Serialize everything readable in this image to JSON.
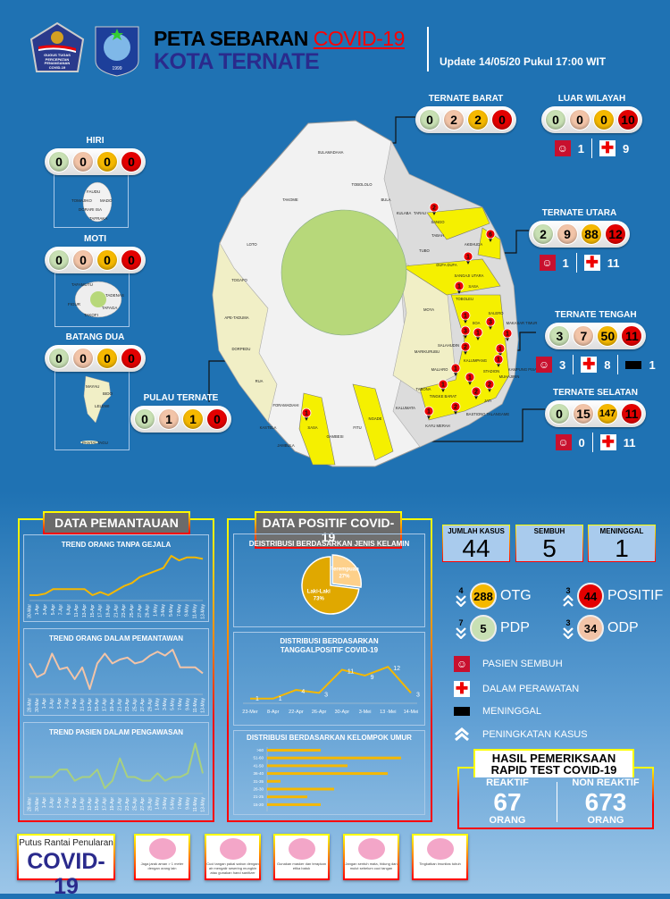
{
  "header": {
    "title_a": "PETA SEBARAN",
    "title_b": "COVID-19",
    "subtitle": "KOTA TERNATE",
    "update": "Update 14/05/20 Pukul 17:00 WIT",
    "logo1_text": "GUGUS TUGAS PERCEPATAN PENANGANAN COVID-19",
    "logo2_text": "1999"
  },
  "colors": {
    "otg": "#f5b800",
    "odp": "#f2c4a8",
    "pdp": "#c8e0b4",
    "positif": "#e30000",
    "background": "#1f72b3"
  },
  "regions": [
    {
      "name": "TERNATE BARAT",
      "values": [
        "0",
        "2",
        "2",
        "0"
      ]
    },
    {
      "name": "LUAR WILAYAH",
      "values": [
        "0",
        "0",
        "0",
        "10"
      ],
      "sembuh": "1",
      "dirawat": "9"
    },
    {
      "name": "TERNATE UTARA",
      "values": [
        "2",
        "9",
        "88",
        "12"
      ],
      "sembuh": "1",
      "dirawat": "11"
    },
    {
      "name": "TERNATE TENGAH",
      "values": [
        "3",
        "7",
        "50",
        "11"
      ],
      "sembuh": "3",
      "dirawat": "8",
      "meninggal": "1"
    },
    {
      "name": "TERNATE SELATAN",
      "values": [
        "0",
        "15",
        "147",
        "11"
      ],
      "sembuh": "0",
      "dirawat": "11"
    },
    {
      "name": "HIRI",
      "values": [
        "0",
        "0",
        "0",
        "0"
      ]
    },
    {
      "name": "MOTI",
      "values": [
        "0",
        "0",
        "0",
        "0"
      ]
    },
    {
      "name": "BATANG DUA",
      "values": [
        "0",
        "0",
        "0",
        "0"
      ]
    },
    {
      "name": "PULAU TERNATE",
      "values": [
        "0",
        "1",
        "1",
        "0"
      ]
    }
  ],
  "map": {
    "villages": [
      "SULAMADAHA",
      "TOBOLOLO",
      "TAKOME",
      "BULA",
      "KULABA",
      "TARAU",
      "SANGO",
      "TABAH",
      "AKEHUDA",
      "TUBO",
      "DUFA DUFA",
      "SANGAJI UTARA",
      "SASA",
      "TOBOLEU",
      "LOTO",
      "TOGAFO",
      "MOYA",
      "SALERO",
      "SOA",
      "MAKASAR TIMUR",
      "SALAHUDIN",
      "KAMPUNG PISANG",
      "KALUMPANG",
      "STADION",
      "MUHAJIRIN",
      "MARIKURUBU",
      "APE-TADUMA",
      "DORPEDU",
      "RUA",
      "MALIARO",
      "TINGKE BARAT",
      "TABONA",
      "JATI",
      "KALUMATA",
      "KAYU MERAH",
      "FITU",
      "NGADE",
      "GAMBESI",
      "SASA ",
      "KASTELA",
      "JAMBULA",
      "FORAMADIAHI",
      "BASTIONG TALANGAME"
    ],
    "markers": [
      "2",
      "6",
      "1",
      "1",
      "1",
      "3",
      "3",
      "1",
      "2",
      "1",
      "1",
      "1",
      "1",
      "1",
      "1",
      "2",
      "2",
      "2",
      "1",
      "1"
    ],
    "hiri_villages": [
      "FAUDU",
      "TOMAJIKO",
      "MADO",
      "DORARI ISA",
      "TAFRAKA"
    ],
    "moti_villages": [
      "TAFAMUTU",
      "TADENAS",
      "FIGUR",
      "TAFAGA",
      "TAKOFI"
    ],
    "batangdua_villages": [
      "MAYAU",
      "BIDO",
      "LELEWI",
      "PANTAI TAGU"
    ]
  },
  "summary": {
    "jumlah_label": "JUMLAH KASUS",
    "jumlah": "44",
    "sembuh_label": "SEMBUH",
    "sembuh": "5",
    "meninggal_label": "MENINGGAL",
    "meninggal": "1"
  },
  "stats": [
    {
      "label": "OTG",
      "value": "288",
      "change": "4",
      "direction": "down"
    },
    {
      "label": "POSITIF",
      "value": "44",
      "change": "3",
      "direction": "up"
    },
    {
      "label": "PDP",
      "value": "5",
      "change": "7",
      "direction": "down"
    },
    {
      "label": "ODP",
      "value": "34",
      "change": "3",
      "direction": "down"
    }
  ],
  "legend": {
    "sembuh": "PASIEN SEMBUH",
    "dirawat": "DALAM PERAWATAN",
    "meninggal": "MENINGGAL",
    "peningkatan": "PENINGKATAN KASUS"
  },
  "rapid": {
    "title1": "HASIL PEMERIKSAAN",
    "title2": "RAPID TEST COVID-19",
    "reaktif_label": "REAKTIF",
    "reaktif": "67",
    "non_label": "NON REAKTIF",
    "non": "673",
    "unit": "ORANG"
  },
  "panels": {
    "pemantauan": "DATA PEMANTAUAN",
    "positif": "DATA POSITIF COVID-19"
  },
  "footer": {
    "campaign1": "Putus Rantai Penularan",
    "campaign2": "COVID-19",
    "cards": [
      "Jaga jarak aman > 1 meter dengan orang lain",
      "Cuci tangan pakai sabun dengan air mengalir sesering mungkin atau gunakan hand sanitizer",
      "Gunakan masker dan terapkan etika batuk",
      "Jangan sentuh mata, hidung dan mulut sebelum cuci tangan",
      "Tingkatkan imunitas tubuh"
    ]
  },
  "chart_data": [
    {
      "type": "line",
      "title": "TREND ORANG TANPA GEJALA",
      "color": "#f5b800",
      "categories": [
        "30-Mar",
        "1-Apr",
        "3-Apr",
        "5-Apr",
        "7-Apr",
        "9-Apr",
        "11-Apr",
        "13-Apr",
        "15-Apr",
        "17-Apr",
        "19-Apr",
        "21-Apr",
        "23-Apr",
        "25-Apr",
        "27-Apr",
        "29-Apr",
        "1-May",
        "3-May",
        "5-May",
        "7-May",
        "9-May",
        "11-May",
        "13-May"
      ],
      "values": [
        2,
        2,
        3,
        6,
        6,
        6,
        6,
        6,
        2,
        4,
        2,
        5,
        8,
        10,
        14,
        16,
        18,
        20,
        28,
        25,
        27,
        27,
        26
      ]
    },
    {
      "type": "line",
      "title": "TREND ORANG DALAM PEMANTAWAN",
      "color": "#f2c4a8",
      "categories": [
        "28-Mar",
        "30-Mar",
        "1-Apr",
        "3-Apr",
        "5-Apr",
        "7-Apr",
        "9-Apr",
        "11-Apr",
        "13-Apr",
        "15-Apr",
        "17-Apr",
        "19-Apr",
        "21-Apr",
        "23-Apr",
        "25-Apr",
        "27-Apr",
        "29-Apr",
        "1-May",
        "3-May",
        "5-May",
        "7-May",
        "9-May",
        "11-May",
        "13-May"
      ],
      "values": [
        40,
        33,
        35,
        45,
        37,
        38,
        32,
        38,
        27,
        40,
        45,
        40,
        42,
        43,
        40,
        41,
        44,
        46,
        44,
        47,
        38,
        38,
        38,
        35
      ]
    },
    {
      "type": "line",
      "title": "TREND PASIEN DALAM PENGAWASAN",
      "color": "#a8d080",
      "categories": [
        "28-Mar",
        "30-Mar",
        "1-Apr",
        "3-Apr",
        "5-Apr",
        "7-Apr",
        "9-Apr",
        "11-Apr",
        "13-Apr",
        "15-Apr",
        "17-Apr",
        "19-Apr",
        "21-Apr",
        "23-Apr",
        "25-Apr",
        "27-Apr",
        "29-Apr",
        "1-May",
        "3-May",
        "5-May",
        "7-May",
        "9-May",
        "11-May",
        "13-May"
      ],
      "values": [
        3,
        3,
        3,
        3,
        5,
        5,
        2,
        3,
        3,
        5,
        0,
        2,
        8,
        3,
        3,
        2,
        2,
        4,
        2,
        3,
        3,
        4,
        12,
        4
      ]
    },
    {
      "type": "pie",
      "title": "DEISTRIBUSI BERDASARKAN JENIS KELAMIN",
      "categories": [
        "Perempuan",
        "Laki-Laki"
      ],
      "values": [
        27,
        73
      ],
      "labels": [
        "27%",
        "73%"
      ],
      "colors": [
        "#fdd08a",
        "#e0a800"
      ]
    },
    {
      "type": "line",
      "title": "DISTRIBUSI BERDASARKAN TANGGALPOSITIF COVID-19",
      "color": "#f5b800",
      "categories": [
        "23-Mer",
        "8-Apr",
        "22-Apr",
        "26-Apr",
        "30-Apr",
        "3-Mei",
        "13 -Mei",
        "14-Mei"
      ],
      "values": [
        1,
        1,
        4,
        3,
        11,
        9,
        12,
        3
      ]
    },
    {
      "type": "bar",
      "orientation": "horizontal",
      "title": "DISTRIBUSI BERDASARKAN KELOMPOK UMUR",
      "color": "#f5b800",
      "categories": [
        ">60",
        "51-60",
        "41-50",
        "36-40",
        "31-35",
        "26-30",
        "21-25",
        "15-20"
      ],
      "values": [
        4,
        10,
        6,
        9,
        1,
        5,
        3,
        4
      ]
    }
  ]
}
